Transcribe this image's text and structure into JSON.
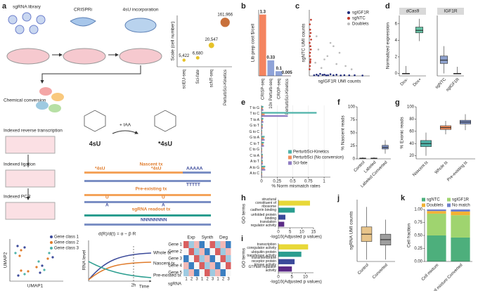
{
  "panel_labels": [
    "a",
    "b",
    "c",
    "d",
    "e",
    "f",
    "g",
    "h",
    "i",
    "j",
    "k"
  ],
  "diagram": {
    "steps": {
      "library": "sgRNA library",
      "crispri": "CRISPRi",
      "incorporation": "4sU incorporation",
      "conversion": "Chemical conversion",
      "rt": "Indexed reverse transcription",
      "ligation": "Indexed ligation",
      "pcr": "Indexed PCR"
    },
    "chemistry": {
      "before": "4sU",
      "reagent": "+ IAA",
      "after": "*4sU"
    },
    "reads": {
      "nascent": "Nascent tx",
      "preexisting": "Pre-existing tx",
      "sgrna": "sgRNA readout tx",
      "converted": "*4sU",
      "u": "U",
      "a": "A",
      "polya": "AAAAA",
      "polyt": "TTTTT",
      "barcode": "NNNNNNNN"
    },
    "umap": {
      "x": "UMAP1",
      "y": "UMAP2",
      "classes": [
        "Gene class 1",
        "Gene class 2",
        "Gene class 3"
      ]
    },
    "kinetics": {
      "y": "RNA level",
      "x": "Time",
      "formula": "d(R)/d(t) = α − β·R",
      "whole": "Whole tx",
      "nascent": "Nascent tx",
      "preexisted": "Pre-existed tx",
      "time": "2h"
    },
    "heatmap": {
      "groups": [
        "Exp",
        "Synth",
        "Deg"
      ],
      "genes": [
        "Gene 1",
        "Gene 2",
        "Gene 3",
        "Gene 4",
        "Gene 5"
      ],
      "columns": [
        "1",
        "2",
        "3"
      ],
      "xlabel": "sgRNA"
    }
  },
  "chart_data": [
    {
      "type": "scatter",
      "ylabel": "Scale (cell number)",
      "log": true,
      "ylim": [
        3000,
        300000
      ],
      "categories": [
        "sciEU-seq",
        "Sci-fate",
        "scNT-seq",
        "PerturbSci-Kinetics"
      ],
      "values": [
        5422,
        6680,
        20547,
        161966
      ],
      "value_labels": [
        "5,422",
        "6,680",
        "20,547",
        "161,966"
      ],
      "colors": [
        "#e6c229",
        "#e6c229",
        "#e6c229",
        "#c8703b"
      ]
    },
    {
      "type": "bar",
      "ylabel": "Lib prep cost $/cell",
      "ylim": [
        0,
        1.4
      ],
      "categories": [
        "CRISP-seq",
        "10x Perturb-seq",
        "CROP-seq",
        "PerturbSci-Kinetics"
      ],
      "values": [
        1.3,
        0.33,
        0.1,
        0.005
      ],
      "colors": [
        "#f4845f",
        "#8fa3d8",
        "#8fa3d8",
        "#e58fc4"
      ]
    },
    {
      "type": "scatter",
      "xlabel": "sgIGF1R UMI counts",
      "ylabel": "sgNTC UMI counts",
      "xlim": [
        0,
        100
      ],
      "ylim": [
        0,
        100
      ],
      "legend": "top-right",
      "series": [
        {
          "name": "sgIGF1R",
          "color": "#1f2a7a",
          "x": [
            8,
            12,
            15,
            18,
            22,
            25,
            28,
            31,
            35,
            40,
            45,
            52,
            58,
            66,
            75,
            88
          ],
          "values": [
            1,
            2,
            0.5,
            3,
            1.5,
            2,
            0.8,
            1,
            2.5,
            1,
            1.8,
            0.7,
            1.2,
            0.9,
            1,
            0.6
          ]
        },
        {
          "name": "sgNTC",
          "color": "#c0392b",
          "x": [
            0.5,
            1,
            1.5,
            2,
            0.8,
            1.2,
            2.5,
            1.8,
            0.6,
            3,
            1,
            2.2,
            1.4,
            0.9,
            2.8,
            1.6
          ],
          "values": [
            10,
            15,
            20,
            25,
            30,
            35,
            40,
            45,
            50,
            55,
            60,
            65,
            70,
            78,
            85,
            22
          ]
        },
        {
          "name": "Doublets",
          "color": "#bbbbbb",
          "x": [
            10,
            20,
            30,
            45,
            15,
            25,
            60,
            35,
            12,
            50,
            70,
            40
          ],
          "values": [
            20,
            12,
            30,
            18,
            40,
            25,
            15,
            50,
            60,
            35,
            10,
            45
          ]
        }
      ]
    },
    {
      "type": "box",
      "ylabel": "Normalized expression",
      "ylim": [
        -0.3,
        7
      ],
      "yticks": [
        0,
        2,
        4,
        6
      ],
      "facets": [
        {
          "title": "dCas9",
          "categories": [
            "Dox-",
            "Dox+"
          ],
          "colors": [
            "#e8a0a0",
            "#66c2a5"
          ],
          "values": [
            {
              "min": 0,
              "q1": 0,
              "median": 0,
              "q3": 0,
              "max": 0.9
            },
            {
              "min": 3.9,
              "q1": 4.9,
              "median": 5.2,
              "q3": 5.6,
              "max": 6.6
            }
          ]
        },
        {
          "title": "IGF1R",
          "categories": [
            "sgNTC",
            "sgIGF1R"
          ],
          "colors": [
            "#8da0cb",
            "#e8a0a0"
          ],
          "values": [
            {
              "min": 0,
              "q1": 1.2,
              "median": 1.6,
              "q3": 2.1,
              "max": 3.3
            },
            {
              "min": 0,
              "q1": 0,
              "median": 0,
              "q3": 0,
              "max": 0.8
            }
          ]
        }
      ]
    },
    {
      "type": "bar",
      "orientation": "horizontal",
      "xlabel": "% Norm mismatch rates",
      "xlim": [
        0,
        1.1
      ],
      "xticks": [
        0,
        0.25,
        0.5,
        0.75,
        1
      ],
      "grid": true,
      "categories": [
        "T to G",
        "T to C",
        "T to A",
        "G to T",
        "G to C",
        "G to A",
        "C to T",
        "C to G",
        "C to A",
        "A to T",
        "A to G",
        "A to C"
      ],
      "series": [
        {
          "name": "PerturbSci-Kinetics",
          "color": "#4fb3a9",
          "values": [
            0.03,
            0.88,
            0.03,
            0.02,
            0.01,
            0.05,
            0.04,
            0.01,
            0.02,
            0.02,
            0.06,
            0.01
          ]
        },
        {
          "name": "PerturbSci (No conversion)",
          "color": "#f28e5c",
          "values": [
            0.02,
            0.05,
            0.02,
            0.02,
            0.01,
            0.04,
            0.03,
            0.01,
            0.02,
            0.02,
            0.05,
            0.01
          ]
        },
        {
          "name": "Sci-fate",
          "color": "#8e7cc3",
          "values": [
            0.03,
            0.42,
            0.03,
            0.02,
            0.01,
            0.05,
            0.04,
            0.01,
            0.02,
            0.02,
            0.06,
            0.01
          ]
        }
      ]
    },
    {
      "type": "box",
      "ylabel": "% Nascent reads",
      "ylim": [
        0,
        100
      ],
      "yticks": [
        0,
        25,
        50,
        75,
        100
      ],
      "categories": [
        "Control",
        "Labeled",
        "Labeled Converted"
      ],
      "colors": [
        "#bdbdbd",
        "#bdbdbd",
        "#7b8fc4"
      ],
      "values": [
        {
          "min": 0,
          "q1": 0.5,
          "median": 1,
          "q3": 1.5,
          "max": 3
        },
        {
          "min": 0,
          "q1": 0.5,
          "median": 1,
          "q3": 1.5,
          "max": 3
        },
        {
          "min": 10,
          "q1": 19,
          "median": 22,
          "q3": 26,
          "max": 36
        }
      ]
    },
    {
      "type": "box",
      "ylabel": "% Exonic reads",
      "ylim": [
        15,
        100
      ],
      "yticks": [
        20,
        40,
        60,
        80,
        100
      ],
      "categories": [
        "Nascent tx",
        "Whole tx",
        "Pre-existing tx"
      ],
      "colors": [
        "#4fb3a9",
        "#f28e5c",
        "#7b8fc4"
      ],
      "values": [
        {
          "min": 20,
          "q1": 35,
          "median": 40,
          "q3": 45,
          "max": 58
        },
        {
          "min": 55,
          "q1": 63,
          "median": 66,
          "q3": 69,
          "max": 77
        },
        {
          "min": 62,
          "q1": 72,
          "median": 75,
          "q3": 78,
          "max": 88
        }
      ]
    },
    {
      "type": "bar",
      "orientation": "horizontal",
      "ylabel": "GO terms",
      "xlabel": "-log10(Adjusted p values)",
      "xlim": [
        0,
        15
      ],
      "xticks": [
        0,
        5,
        10,
        15
      ],
      "categories": [
        "structural constituent of ribosome",
        "cadherin binding",
        "unfolded protein binding",
        "translation regulator activity"
      ],
      "values": [
        13.5,
        7,
        3,
        2.5
      ],
      "colors": [
        "#e8d838",
        "#2a9d8f",
        "#3b4a9a",
        "#5b2a86"
      ]
    },
    {
      "type": "bar",
      "orientation": "horizontal",
      "ylabel": "GO terms",
      "xlabel": "-log10(Adjusted p values)",
      "xlim": [
        0,
        13
      ],
      "xticks": [
        0,
        5,
        10
      ],
      "categories": [
        "transcription coregulator activity",
        "ubiquitin-protein transferase activity",
        "transmembrane receptor protein kinase activity",
        "GTPase regulator activity"
      ],
      "values": [
        11,
        8.5,
        6,
        5
      ],
      "colors": [
        "#e8d838",
        "#2a9d8f",
        "#3b4a9a",
        "#5b2a86"
      ]
    },
    {
      "type": "box",
      "ylabel": "sgRNA UMI counts",
      "ylim": [
        0,
        170
      ],
      "categories": [
        "Control",
        "Converted"
      ],
      "colors": [
        "#e8c48a",
        "#9e9e9e"
      ],
      "values": [
        {
          "min": 5,
          "q1": 55,
          "median": 75,
          "q3": 95,
          "max": 150
        },
        {
          "min": 5,
          "q1": 45,
          "median": 60,
          "q3": 75,
          "max": 115
        }
      ]
    },
    {
      "type": "stacked_bar",
      "ylabel": "Cell fraction",
      "ylim": [
        0,
        1
      ],
      "yticks": [
        {
          "value": 0,
          "label": "0.00"
        },
        {
          "value": 0.25,
          "label": "0.25"
        },
        {
          "value": 0.5,
          "label": "0.50"
        },
        {
          "value": 0.75,
          "label": "0.75"
        },
        {
          "value": 1,
          "label": "1.00"
        }
      ],
      "categories": [
        "Cell mixture",
        "Cell mixture Converted"
      ],
      "series": [
        {
          "name": "sgNTC",
          "color": "#4daf7c",
          "values": [
            0.5,
            0.46
          ]
        },
        {
          "name": "sgIGF1R",
          "color": "#9fd46f",
          "values": [
            0.42,
            0.43
          ]
        },
        {
          "name": "Doublets",
          "color": "#f2b134",
          "values": [
            0.05,
            0.07
          ]
        },
        {
          "name": "No match",
          "color": "#6d7fcc",
          "values": [
            0.03,
            0.04
          ]
        }
      ]
    }
  ]
}
